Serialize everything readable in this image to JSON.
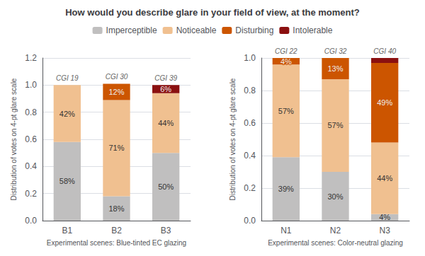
{
  "chart_data": [
    {
      "type": "bar",
      "stacked": true,
      "title": "How would you describe glare in your field of view, at the moment?",
      "legend": "top",
      "grid": true,
      "data_labels": true,
      "xlabel": "Experimental scenes: Blue-tinted EC glazing",
      "ylabel": "Distribution of votes on 4-pt glare scale",
      "categories": [
        "B1",
        "B2",
        "B3"
      ],
      "annotations": [
        "CGI 19",
        "CGI 30",
        "CGI 39"
      ],
      "ylim": [
        0,
        1.2
      ],
      "yticks": [
        {
          "value": 0,
          "label": "0.0"
        },
        0.2,
        0.4,
        0.6,
        0.8,
        {
          "value": 1,
          "label": "1.0"
        },
        1.2
      ],
      "series": [
        {
          "name": "Imperceptible",
          "color": "#c0bfbf",
          "values": [
            0.58,
            0.18,
            0.5
          ],
          "value_labels": [
            "58%",
            "18%",
            "50%"
          ]
        },
        {
          "name": "Noticeable",
          "color": "#f0c090",
          "values": [
            0.42,
            0.71,
            0.44
          ],
          "value_labels": [
            "42%",
            "71%",
            "44%"
          ]
        },
        {
          "name": "Disturbing",
          "color": "#cc5500",
          "values": [
            0.0,
            0.12,
            0.0
          ],
          "value_labels": [
            null,
            "12%",
            null
          ]
        },
        {
          "name": "Intolerable",
          "color": "#8b1010",
          "values": [
            0.0,
            0.0,
            0.06
          ],
          "value_labels": [
            null,
            null,
            "6%"
          ]
        }
      ]
    },
    {
      "type": "bar",
      "stacked": true,
      "grid": true,
      "data_labels": true,
      "xlabel": "Experimental scenes: Color-neutral glazing",
      "ylabel": "Distribution of votes on 4-pt glare scale",
      "categories": [
        "N1",
        "N2",
        "N3"
      ],
      "annotations": [
        "CGI 22",
        "CGI 32",
        "CGI 40"
      ],
      "ylim": [
        0,
        1
      ],
      "yticks": [
        {
          "value": 0,
          "label": "0.0"
        },
        0.2,
        0.4,
        0.6,
        0.8,
        {
          "value": 1,
          "label": "1.0"
        }
      ],
      "series": [
        {
          "name": "Imperceptible",
          "color": "#c0bfbf",
          "values": [
            0.39,
            0.3,
            0.04
          ],
          "value_labels": [
            "39%",
            "30%",
            "4%"
          ]
        },
        {
          "name": "Noticeable",
          "color": "#f0c090",
          "values": [
            0.57,
            0.57,
            0.44
          ],
          "value_labels": [
            "57%",
            "57%",
            "44%"
          ]
        },
        {
          "name": "Disturbing",
          "color": "#cc5500",
          "values": [
            0.04,
            0.13,
            0.49
          ],
          "value_labels": [
            "4%",
            "13%",
            "49%"
          ]
        },
        {
          "name": "Intolerable",
          "color": "#8b1010",
          "values": [
            0.0,
            0.0,
            0.03
          ],
          "value_labels": [
            null,
            null,
            null
          ]
        }
      ]
    }
  ]
}
